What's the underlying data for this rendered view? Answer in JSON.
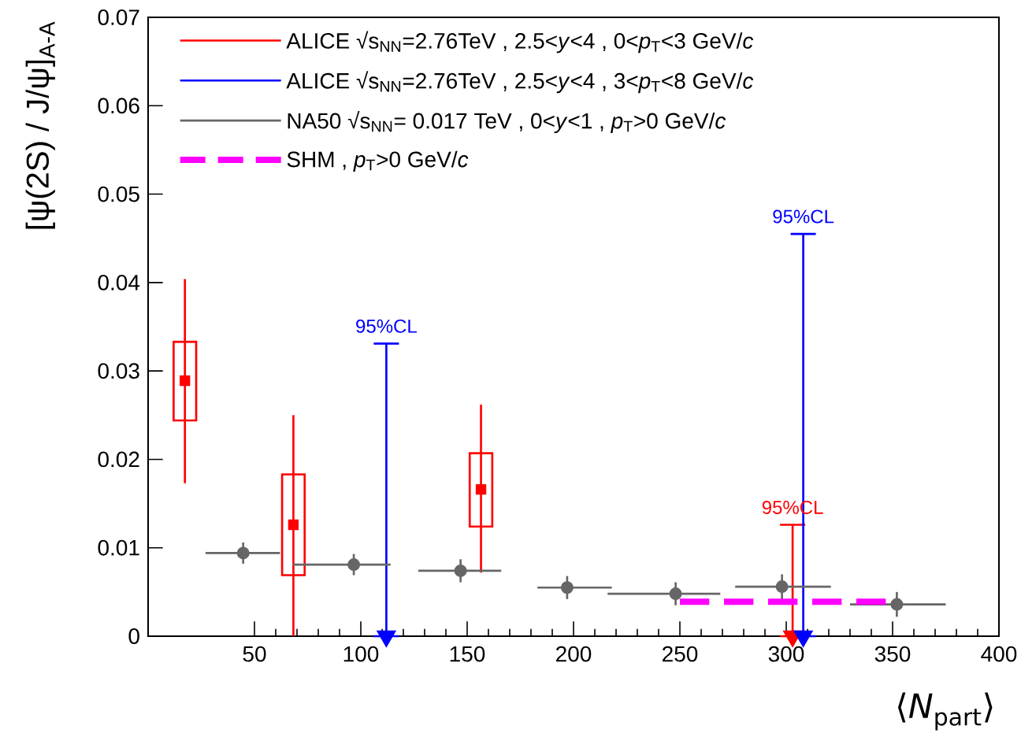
{
  "chart_data": {
    "type": "scatter",
    "xlabel": "⟨*N*$_{part}$⟩",
    "ylabel": "[ψ(2S) / J/ψ]$_{A-A}$",
    "xlim": [
      0,
      400
    ],
    "ylim": [
      0,
      0.07
    ],
    "xticks": [
      50,
      100,
      150,
      200,
      250,
      300,
      350,
      400
    ],
    "yticks": [
      0,
      0.01,
      0.02,
      0.03,
      0.04,
      0.05,
      0.06,
      0.07
    ],
    "legend": "top",
    "series": [
      {
        "name": "ALICE √s$_{NN}$=2.76TeV , 2.5<*y*<4 , 0<*p*$_{T}$<3 GeV/*c*",
        "color": "#ff0000",
        "marker": "square",
        "x": [
          17.3,
          68.3,
          156.5
        ],
        "values": [
          0.0289,
          0.0126,
          0.0166
        ],
        "errors": [
          [
            0.0173,
            0.0404
          ],
          [
            0,
            0.025
          ],
          [
            0.0072,
            0.0262
          ]
        ]
      },
      {
        "type": "bar",
        "color": "#ff0000",
        "x": [
          17.3,
          68.3,
          156.5
        ],
        "base": [
          0.0244,
          0.0069,
          0.0124
        ],
        "values": [
          0.0089,
          0.0114,
          0.0083
        ]
      },
      {
        "color": "#ff0000",
        "marker": "triangle",
        "x": [
          303
        ],
        "values": [
          0
        ],
        "errors": [
          [
            0,
            0.0126
          ]
        ]
      },
      {
        "name": "ALICE √s$_{NN}$=2.76TeV , 2.5<*y*<4 , 3<*p*$_{T}$<8 GeV/*c*",
        "color": "#0000ff",
        "marker": "triangle",
        "x": [
          112,
          308
        ],
        "values": [
          0,
          0
        ],
        "errors": [
          [
            0,
            0.0331
          ],
          [
            0,
            0.0455
          ]
        ]
      },
      {
        "name": "NA50 √s$_{NN}$= 0.017 TeV , 0<*y*<1 , *p*$_{T}$>0 GeV/*c*",
        "color": "#666666",
        "marker": "circle",
        "x": [
          44.7,
          96.7,
          146.9,
          197,
          248,
          298,
          352
        ],
        "values": [
          0.0094,
          0.0081,
          0.0074,
          0.0055,
          0.0048,
          0.0056,
          0.0036
        ],
        "errors": [
          0.0012,
          0.0012,
          0.0013,
          0.0013,
          0.0013,
          0.0014,
          0.0014
        ],
        "xerrors": [
          [
            27,
            62
          ],
          [
            68,
            114
          ],
          [
            127,
            166
          ],
          [
            183,
            218
          ],
          [
            216,
            269
          ],
          [
            276,
            321
          ],
          [
            330,
            375
          ]
        ]
      },
      {
        "type": "line",
        "name": "SHM , *p*$_{T}$>0 GeV/*c*",
        "color": "#ff00ff",
        "marker": "none",
        "line_style": "dashed",
        "x": [
          250,
          349
        ],
        "values": [
          0.0039,
          0.0039
        ]
      }
    ],
    "annotations": [
      {
        "text": "95%CL",
        "x": 112,
        "y": 0.0331
      },
      {
        "text": "95%CL",
        "x": 308,
        "y": 0.0455
      },
      {
        "text": "95%CL",
        "x": 303,
        "y": 0.0126
      }
    ]
  }
}
